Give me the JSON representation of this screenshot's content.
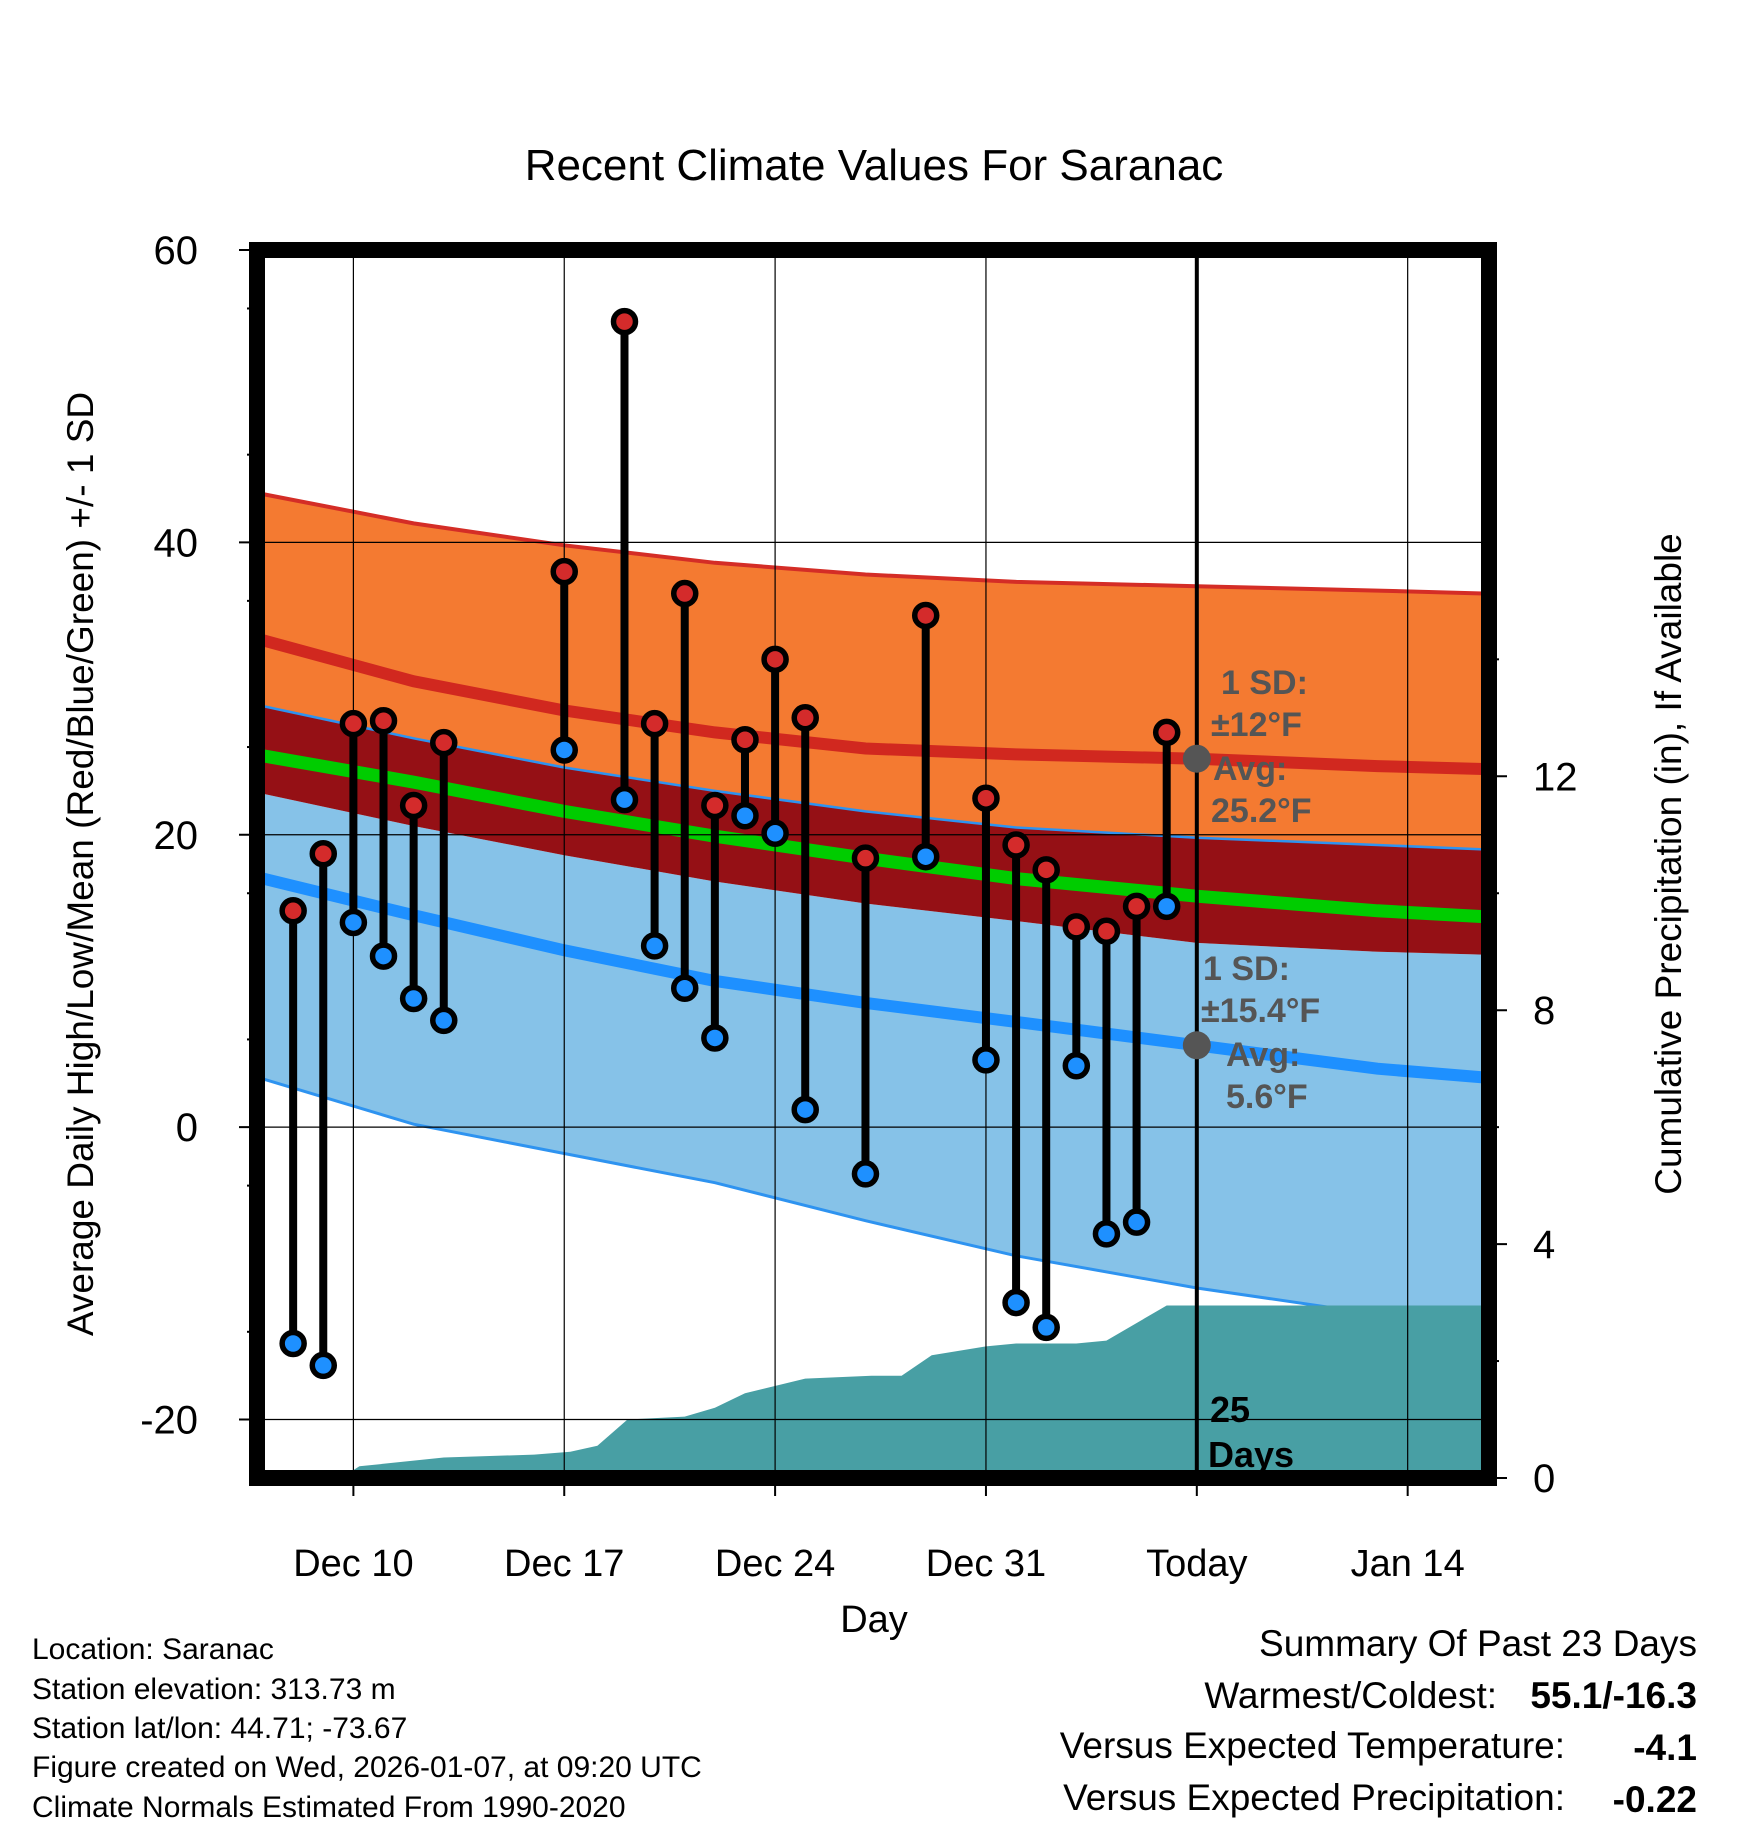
{
  "chart_data": {
    "type": "line",
    "title": "Recent Climate Values For Saranac",
    "xlabel": "Day",
    "ylabel": "Average Daily High/Low/Mean (Red/Blue/Green) +/- 1 SD",
    "y2label": "Cumulative Precipitation (in), If Available",
    "ylim": [
      -24,
      60
    ],
    "xlim": [
      6.8,
      47.7
    ],
    "y2lim": [
      0,
      21
    ],
    "yticks": [
      -20,
      0,
      20,
      40,
      60
    ],
    "y2ticks": [
      0,
      4,
      8,
      12
    ],
    "xtick_positions": [
      10,
      17,
      24,
      31,
      38,
      45
    ],
    "xtick_labels": [
      "Dec 10",
      "Dec 17",
      "Dec 24",
      "Dec 31",
      "Today",
      "Jan 14"
    ],
    "today_x": 38,
    "normals": {
      "x": [
        7,
        12,
        17,
        22,
        27,
        32,
        38,
        44,
        47.5
      ],
      "high_plus_sd": [
        43.3,
        41.3,
        39.8,
        38.6,
        37.8,
        37.3,
        37.0,
        36.7,
        36.5
      ],
      "high_avg": [
        33.3,
        30.5,
        28.5,
        27.0,
        25.9,
        25.5,
        25.2,
        24.7,
        24.5
      ],
      "high_minus_sd": [
        28.8,
        26.6,
        24.6,
        23.0,
        21.6,
        20.5,
        19.8,
        19.3,
        19.0
      ],
      "mean": [
        25.4,
        23.6,
        21.6,
        19.9,
        18.4,
        17.0,
        15.8,
        14.8,
        14.4
      ],
      "low_plus_sd": [
        22.8,
        20.6,
        18.6,
        16.8,
        15.3,
        14.1,
        12.6,
        12.0,
        11.8
      ],
      "low_avg": [
        17.0,
        14.5,
        12.1,
        10.0,
        8.5,
        7.2,
        5.6,
        4.0,
        3.4
      ],
      "low_minus_sd": [
        3.3,
        0.2,
        -1.8,
        -3.8,
        -6.4,
        -8.8,
        -11.0,
        -12.8,
        -13.0
      ]
    },
    "daily": [
      {
        "x": 8,
        "high": 14.8,
        "low": -14.8
      },
      {
        "x": 9,
        "high": 18.7,
        "low": -16.3
      },
      {
        "x": 10,
        "high": 27.6,
        "low": 14.0
      },
      {
        "x": 11,
        "high": 27.8,
        "low": 11.7
      },
      {
        "x": 12,
        "high": 22.0,
        "low": 8.8
      },
      {
        "x": 13,
        "high": 26.3,
        "low": 7.3
      },
      {
        "x": 17,
        "high": 38.0,
        "low": 25.8
      },
      {
        "x": 19,
        "high": 55.1,
        "low": 22.4
      },
      {
        "x": 20,
        "high": 27.6,
        "low": 12.4
      },
      {
        "x": 21,
        "high": 36.5,
        "low": 9.5
      },
      {
        "x": 22,
        "high": 22.0,
        "low": 6.1
      },
      {
        "x": 23,
        "high": 26.5,
        "low": 21.3
      },
      {
        "x": 24,
        "high": 32.0,
        "low": 20.1
      },
      {
        "x": 25,
        "high": 28.0,
        "low": 1.2
      },
      {
        "x": 27,
        "high": 18.4,
        "low": -3.2
      },
      {
        "x": 29,
        "high": 35.0,
        "low": 18.5
      },
      {
        "x": 31,
        "high": 22.5,
        "low": 4.6
      },
      {
        "x": 32,
        "high": 19.3,
        "low": -12.0
      },
      {
        "x": 33,
        "high": 17.6,
        "low": -13.7
      },
      {
        "x": 34,
        "high": 13.7,
        "low": 4.2
      },
      {
        "x": 35,
        "high": 13.4,
        "low": -7.3
      },
      {
        "x": 36,
        "high": 15.1,
        "low": -6.5
      },
      {
        "x": 37,
        "high": 27.0,
        "low": 15.1
      }
    ],
    "precip": {
      "x": [
        9.6,
        10.2,
        13,
        16,
        17.2,
        18.1,
        19.1,
        21,
        22,
        23,
        25,
        27.2,
        28.2,
        29.2,
        31,
        32,
        34,
        35,
        37,
        38,
        47.6
      ],
      "values": [
        0,
        0.2,
        0.35,
        0.4,
        0.45,
        0.55,
        1.0,
        1.05,
        1.2,
        1.45,
        1.7,
        1.75,
        1.75,
        2.1,
        2.25,
        2.3,
        2.3,
        2.35,
        2.95,
        2.95,
        2.95
      ]
    },
    "annotations": {
      "high_sd_label": "1 SD:",
      "high_sd_value": "±12°F",
      "high_avg_label": "Avg:",
      "high_avg_value": "25.2°F",
      "high_avg_marker": 25.2,
      "low_sd_label": "1 SD:",
      "low_sd_value": "±15.4°F",
      "low_avg_label": "Avg:",
      "low_avg_value": "5.6°F",
      "low_avg_marker": 5.6,
      "days_number": "25",
      "days_word": "Days"
    },
    "colors": {
      "high_band": "#f47a31",
      "high_edge": "#d42d26",
      "high_line": "#d1281f",
      "overlap": "#951015",
      "mean_line": "#00cc00",
      "low_band": "#86c2e8",
      "low_edge": "#2e93f0",
      "low_line": "#1e90ff",
      "precip": "#489fa4",
      "high_dot": "#d42b2b",
      "low_dot": "#1e90ff",
      "annotation": "#555555"
    }
  },
  "info": {
    "location": "Location: Saranac",
    "elevation": "Station elevation: 313.73 m",
    "latlon": "Station lat/lon: 44.71; -73.67",
    "created": "Figure created on Wed, 2026-01-07, at 09:20 UTC",
    "normals": "Climate Normals Estimated From 1990-2020"
  },
  "summary": {
    "title": "Summary Of Past 23 Days",
    "warmest_label": "Warmest/Coldest:",
    "warmest_value": "55.1/-16.3",
    "temp_label": "Versus Expected Temperature:",
    "temp_value": "-4.1",
    "temp_color": "#2e9cf0",
    "precip_label": "Versus Expected Precipitation:",
    "precip_value": "-0.22",
    "precip_color": "#a6522a"
  }
}
